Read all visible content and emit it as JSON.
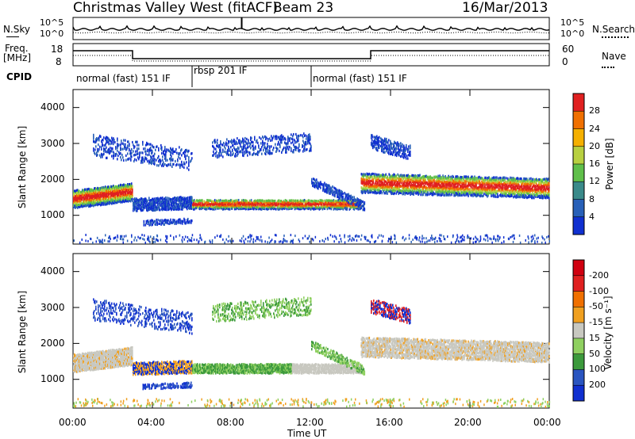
{
  "header": {
    "station": "Christmas Valley West (fitACF)",
    "beam": "Beam 23",
    "date": "16/Mar/2013"
  },
  "top_panels": {
    "nsky_label": "N.Sky",
    "nsearch_label": "N.Search",
    "noise_ticks_left": [
      "10^5",
      "10^0"
    ],
    "noise_ticks_right": [
      "10^5",
      "10^0"
    ],
    "freq_label_1": "Freq.",
    "freq_label_2": "[MHz]",
    "freq_ticks": [
      "18",
      "8"
    ],
    "nave_ticks": [
      "60",
      "0"
    ],
    "nave_label": "Nave",
    "cpid_label": "CPID",
    "cpid_segments": [
      {
        "label": "normal (fast) 151 IF",
        "start": 0,
        "end": 6
      },
      {
        "label": "rbsp 201 IF",
        "start": 6,
        "end": 12
      },
      {
        "label": "normal (fast) 151 IF",
        "start": 12,
        "end": 24
      }
    ]
  },
  "chart_data": [
    {
      "type": "heatmap",
      "name": "power",
      "ylabel": "Slant Range [km]",
      "y_ticks": [
        "1000",
        "2000",
        "3000",
        "4000"
      ],
      "ylim": [
        200,
        4500
      ],
      "colorbar_label": "Power [dB]",
      "colorbar_ticks": [
        "4",
        "8",
        "12",
        "16",
        "20",
        "24",
        "28"
      ],
      "colorbar_colors": [
        "#1030d0",
        "#2860b8",
        "#3a8a8a",
        "#5fbf4a",
        "#b8d040",
        "#f5b000",
        "#f07000",
        "#e02020"
      ]
    },
    {
      "type": "heatmap",
      "name": "velocity",
      "ylabel": "Slant Range [km]",
      "y_ticks": [
        "1000",
        "2000",
        "3000",
        "4000"
      ],
      "ylim": [
        200,
        4500
      ],
      "colorbar_label": "Velocity [m s⁻¹]",
      "colorbar_ticks": [
        "200",
        "100",
        "50",
        "15",
        "-15",
        "-50",
        "-100",
        "-200"
      ],
      "colorbar_colors": [
        "#1030d0",
        "#2a55c0",
        "#3c9a3c",
        "#8fd060",
        "#c8c8c0",
        "#f0a020",
        "#f07000",
        "#e02020",
        "#d00010"
      ]
    }
  ],
  "x_axis": {
    "ticks": [
      "00:00",
      "04:00",
      "08:00",
      "12:00",
      "16:00",
      "20:00",
      "00:00"
    ],
    "label": "Time UT"
  }
}
